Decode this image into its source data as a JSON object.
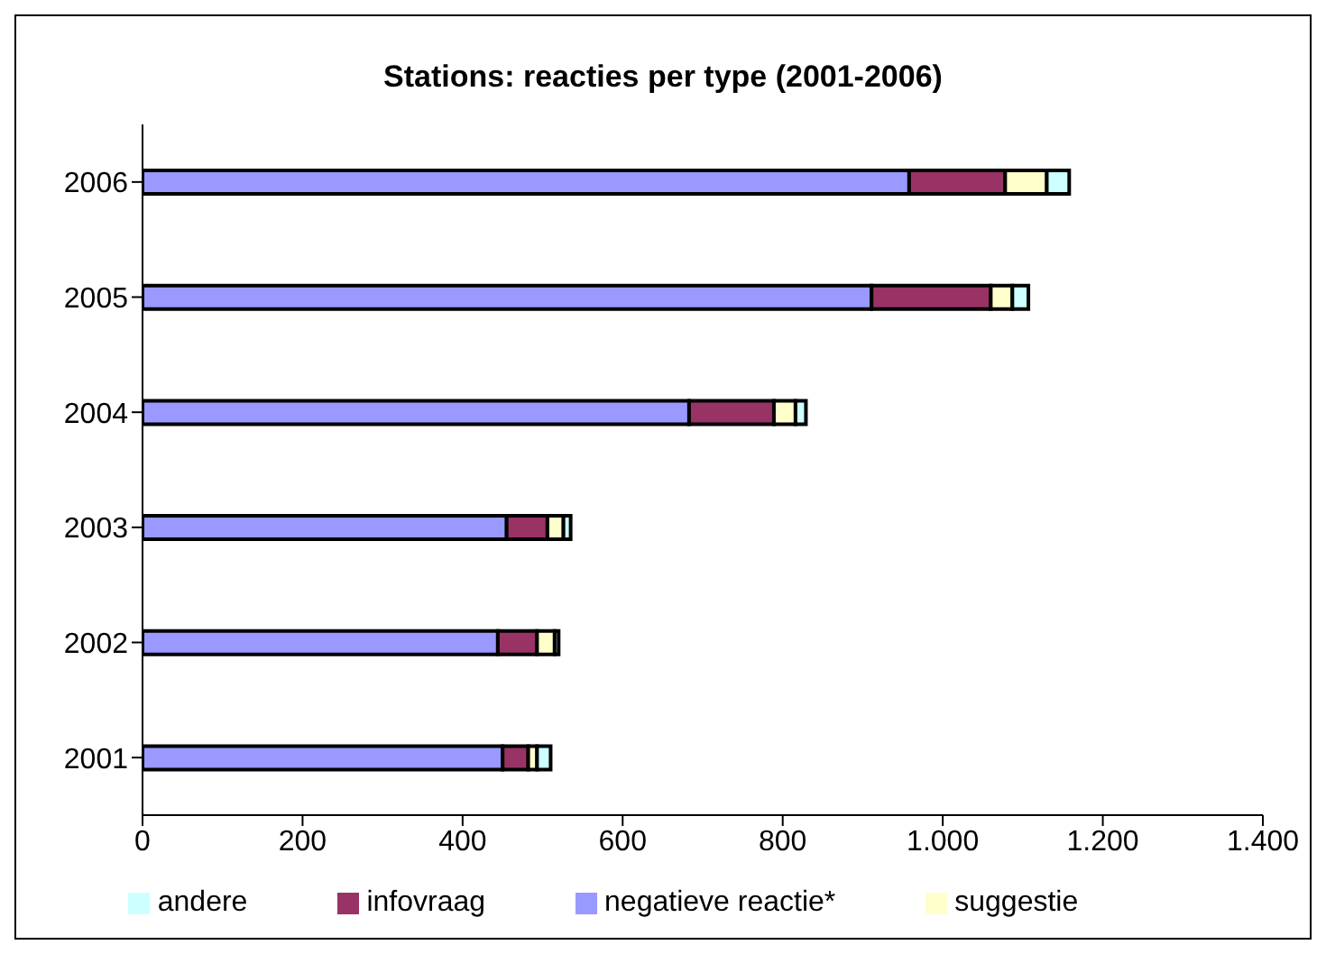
{
  "chart_data": {
    "type": "bar",
    "orientation": "horizontal",
    "stacked": true,
    "title": "Stations: reacties per type (2001-2006)",
    "categories": [
      "2006",
      "2005",
      "2004",
      "2003",
      "2002",
      "2001"
    ],
    "series": [
      {
        "name": "negatieve reactie*",
        "color": "#9999ff",
        "values": [
          958,
          911,
          683,
          455,
          444,
          450
        ]
      },
      {
        "name": "infovraag",
        "color": "#993366",
        "values": [
          120,
          149,
          106,
          51,
          49,
          32
        ]
      },
      {
        "name": "suggestie",
        "color": "#ffffcc",
        "values": [
          52,
          27,
          27,
          20,
          22,
          11
        ]
      },
      {
        "name": "andere",
        "color": "#ccffff",
        "values": [
          28,
          20,
          13,
          9,
          5,
          17
        ]
      }
    ],
    "xlim": [
      0,
      1400
    ],
    "xticks": [
      0,
      {
        "value": 200,
        "label": "200"
      },
      {
        "value": 400,
        "label": "400"
      },
      {
        "value": 600,
        "label": "600"
      },
      {
        "value": 800,
        "label": "800"
      },
      {
        "value": 1000,
        "label": "1.000"
      },
      {
        "value": 1200,
        "label": "1.200"
      },
      {
        "value": 1400,
        "label": "1.400"
      }
    ],
    "grid": false,
    "legend": "bottom"
  }
}
